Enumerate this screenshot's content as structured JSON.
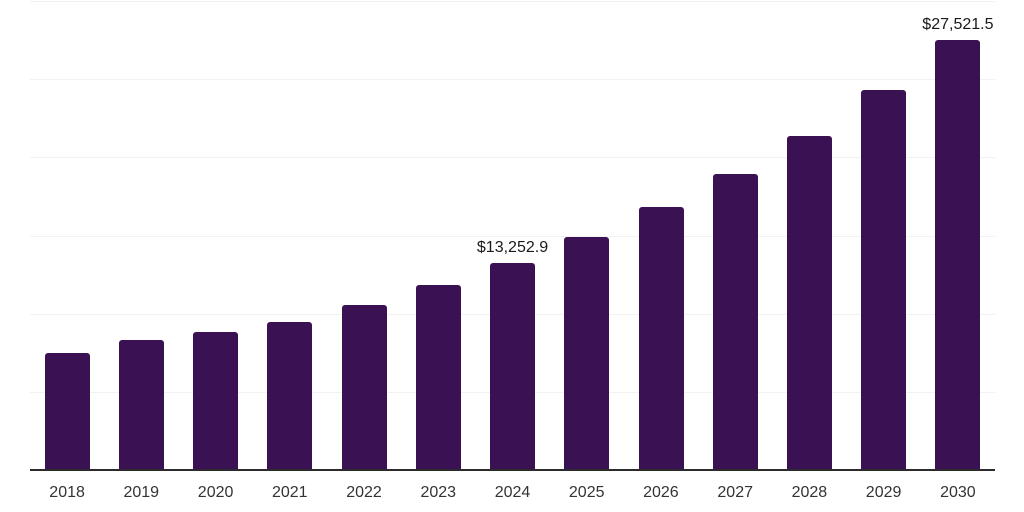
{
  "chart_data": {
    "type": "bar",
    "title": "",
    "xlabel": "",
    "ylabel": "",
    "categories": [
      "2018",
      "2019",
      "2020",
      "2021",
      "2022",
      "2023",
      "2024",
      "2025",
      "2026",
      "2027",
      "2028",
      "2029",
      "2030"
    ],
    "values": [
      7480,
      8320,
      8830,
      9470,
      10560,
      11830,
      13252.9,
      14900,
      16820,
      18930,
      21370,
      24310,
      27521.5
    ],
    "data_labels": [
      "",
      "",
      "",
      "",
      "",
      "",
      "$13,252.9",
      "",
      "",
      "",
      "",
      "",
      "$27,521.5"
    ],
    "ylim": [
      0,
      30000
    ],
    "gridline_values": [
      5000,
      10000,
      15000,
      20000,
      25000,
      30000
    ],
    "grid": "horizontal-only",
    "legend": "none",
    "colors": {
      "bar": "#3a1253",
      "axis_line": "#2b2b2b",
      "gridline": "#f2f2f2",
      "tick_label": "#333333",
      "data_label": "#1a1a1a",
      "background": "#ffffff"
    }
  }
}
